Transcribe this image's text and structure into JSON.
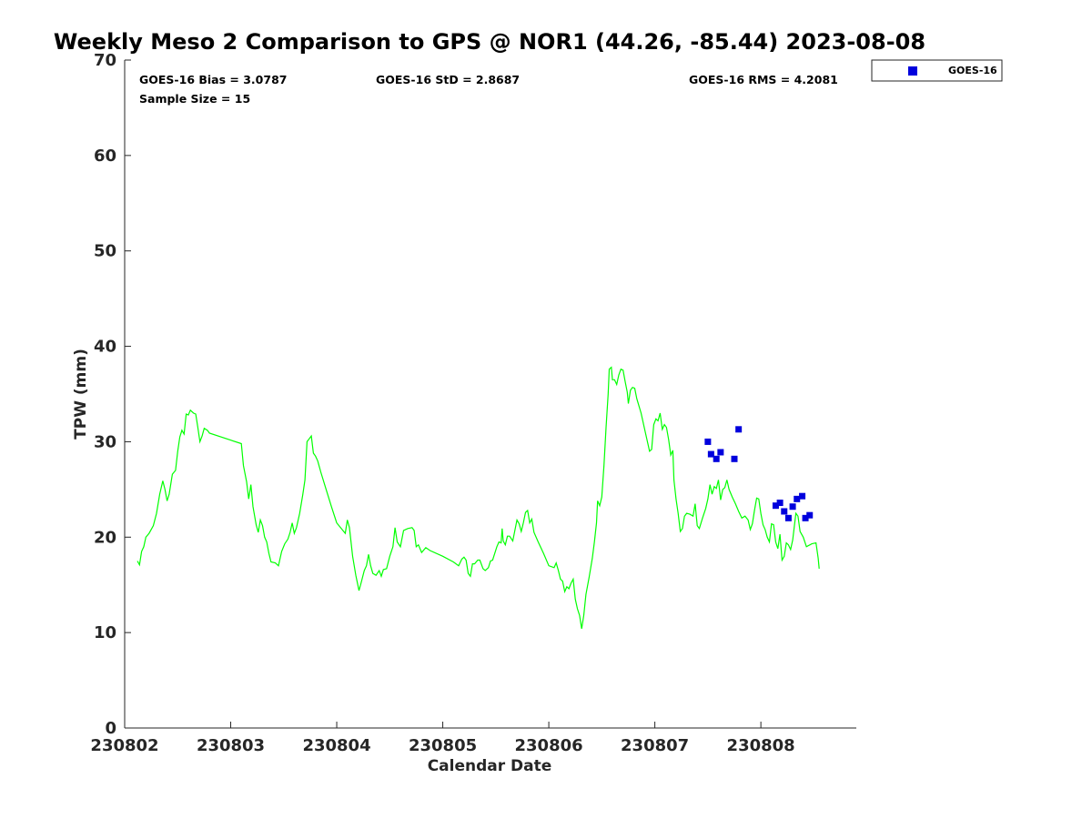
{
  "chart_data": {
    "type": "line",
    "title": "Weekly Meso 2 Comparison to GPS @ NOR1 (44.26, -85.44) 2023-08-08",
    "xlabel": "Calendar Date",
    "ylabel": "TPW (mm)",
    "xlim": [
      0,
      6.9
    ],
    "ylim": [
      0,
      70
    ],
    "x_ticks": [
      {
        "value": 0,
        "label": "230802"
      },
      {
        "value": 1,
        "label": "230803"
      },
      {
        "value": 2,
        "label": "230804"
      },
      {
        "value": 3,
        "label": "230805"
      },
      {
        "value": 4,
        "label": "230806"
      },
      {
        "value": 5,
        "label": "230807"
      },
      {
        "value": 6,
        "label": "230808"
      }
    ],
    "y_ticks": [
      0,
      10,
      20,
      30,
      40,
      50,
      60,
      70
    ],
    "stats": {
      "bias": "GOES-16 Bias = 3.0787",
      "std": "GOES-16 StD = 2.8687",
      "rms": "GOES-16 RMS = 4.2081",
      "sample_size": "Sample Size = 15"
    },
    "legend": {
      "placement": "top-right outside",
      "entries": [
        "GOES-16"
      ]
    },
    "grid": false,
    "series": [
      {
        "kind": "line",
        "color": "#00ff00",
        "points": [
          [
            0.12,
            17.5
          ],
          [
            0.14,
            17.1
          ],
          [
            0.16,
            18.5
          ],
          [
            0.18,
            19.0
          ],
          [
            0.2,
            20.0
          ],
          [
            0.23,
            20.4
          ],
          [
            0.27,
            21.2
          ],
          [
            0.3,
            22.5
          ],
          [
            0.33,
            24.5
          ],
          [
            0.36,
            25.9
          ],
          [
            0.38,
            25.0
          ],
          [
            0.4,
            23.8
          ],
          [
            0.42,
            24.5
          ],
          [
            0.45,
            26.6
          ],
          [
            0.48,
            27.0
          ],
          [
            0.5,
            29.0
          ],
          [
            0.52,
            30.5
          ],
          [
            0.54,
            31.2
          ],
          [
            0.56,
            30.8
          ],
          [
            0.58,
            32.9
          ],
          [
            0.6,
            32.8
          ],
          [
            0.62,
            33.3
          ],
          [
            0.65,
            33.0
          ],
          [
            0.67,
            32.9
          ],
          [
            0.69,
            31.5
          ],
          [
            0.71,
            30.0
          ],
          [
            0.73,
            30.6
          ],
          [
            0.75,
            31.4
          ],
          [
            0.78,
            31.2
          ],
          [
            0.8,
            30.9
          ],
          [
            1.1,
            29.8
          ],
          [
            1.12,
            27.5
          ],
          [
            1.15,
            25.8
          ],
          [
            1.17,
            24.0
          ],
          [
            1.19,
            25.5
          ],
          [
            1.21,
            23.2
          ],
          [
            1.24,
            21.3
          ],
          [
            1.26,
            20.5
          ],
          [
            1.28,
            21.8
          ],
          [
            1.3,
            21.2
          ],
          [
            1.32,
            20.0
          ],
          [
            1.34,
            19.5
          ],
          [
            1.36,
            18.3
          ],
          [
            1.38,
            17.4
          ],
          [
            1.42,
            17.3
          ],
          [
            1.45,
            17.0
          ],
          [
            1.48,
            18.5
          ],
          [
            1.51,
            19.3
          ],
          [
            1.54,
            19.8
          ],
          [
            1.56,
            20.5
          ],
          [
            1.58,
            21.5
          ],
          [
            1.6,
            20.4
          ],
          [
            1.62,
            21.0
          ],
          [
            1.65,
            22.5
          ],
          [
            1.68,
            24.5
          ],
          [
            1.7,
            26.0
          ],
          [
            1.72,
            30.0
          ],
          [
            1.74,
            30.3
          ],
          [
            1.76,
            30.6
          ],
          [
            1.78,
            28.8
          ],
          [
            1.8,
            28.5
          ],
          [
            1.82,
            28.0
          ],
          [
            1.85,
            26.8
          ],
          [
            1.9,
            25.0
          ],
          [
            1.95,
            23.2
          ],
          [
            2.0,
            21.5
          ],
          [
            2.08,
            20.4
          ],
          [
            2.1,
            21.8
          ],
          [
            2.12,
            21.0
          ],
          [
            2.15,
            18.0
          ],
          [
            2.18,
            16.0
          ],
          [
            2.21,
            14.4
          ],
          [
            2.23,
            15.2
          ],
          [
            2.26,
            16.5
          ],
          [
            2.28,
            17.0
          ],
          [
            2.3,
            18.2
          ],
          [
            2.32,
            17.0
          ],
          [
            2.34,
            16.2
          ],
          [
            2.37,
            16.0
          ],
          [
            2.4,
            16.5
          ],
          [
            2.42,
            15.9
          ],
          [
            2.44,
            16.6
          ],
          [
            2.47,
            16.7
          ],
          [
            2.5,
            18.0
          ],
          [
            2.53,
            19.0
          ],
          [
            2.55,
            21.0
          ],
          [
            2.57,
            19.5
          ],
          [
            2.6,
            19.0
          ],
          [
            2.63,
            20.7
          ],
          [
            2.67,
            20.9
          ],
          [
            2.71,
            21.0
          ],
          [
            2.73,
            20.7
          ],
          [
            2.75,
            19.0
          ],
          [
            2.77,
            19.2
          ],
          [
            2.8,
            18.4
          ],
          [
            2.84,
            18.9
          ],
          [
            2.88,
            18.6
          ],
          [
            3.0,
            18.0
          ],
          [
            3.1,
            17.4
          ],
          [
            3.15,
            17.0
          ],
          [
            3.18,
            17.7
          ],
          [
            3.2,
            17.9
          ],
          [
            3.22,
            17.6
          ],
          [
            3.24,
            16.2
          ],
          [
            3.26,
            15.9
          ],
          [
            3.28,
            17.2
          ],
          [
            3.3,
            17.2
          ],
          [
            3.33,
            17.6
          ],
          [
            3.35,
            17.6
          ],
          [
            3.38,
            16.7
          ],
          [
            3.4,
            16.5
          ],
          [
            3.43,
            16.8
          ],
          [
            3.45,
            17.5
          ],
          [
            3.47,
            17.6
          ],
          [
            3.49,
            18.3
          ],
          [
            3.51,
            19.0
          ],
          [
            3.53,
            19.5
          ],
          [
            3.55,
            19.4
          ],
          [
            3.56,
            20.9
          ],
          [
            3.57,
            19.6
          ],
          [
            3.59,
            19.2
          ],
          [
            3.61,
            20.1
          ],
          [
            3.63,
            20.1
          ],
          [
            3.66,
            19.6
          ],
          [
            3.68,
            20.7
          ],
          [
            3.7,
            21.8
          ],
          [
            3.72,
            21.4
          ],
          [
            3.74,
            20.6
          ],
          [
            3.76,
            21.5
          ],
          [
            3.78,
            22.6
          ],
          [
            3.8,
            22.8
          ],
          [
            3.82,
            21.5
          ],
          [
            3.84,
            21.9
          ],
          [
            3.86,
            20.5
          ],
          [
            3.9,
            19.5
          ],
          [
            3.95,
            18.3
          ],
          [
            4.0,
            17.0
          ],
          [
            4.05,
            16.8
          ],
          [
            4.07,
            17.3
          ],
          [
            4.09,
            16.5
          ],
          [
            4.11,
            15.6
          ],
          [
            4.13,
            15.4
          ],
          [
            4.15,
            14.3
          ],
          [
            4.17,
            14.8
          ],
          [
            4.19,
            14.6
          ],
          [
            4.21,
            15.2
          ],
          [
            4.23,
            15.6
          ],
          [
            4.25,
            13.5
          ],
          [
            4.27,
            12.5
          ],
          [
            4.29,
            11.8
          ],
          [
            4.31,
            10.4
          ],
          [
            4.33,
            11.8
          ],
          [
            4.35,
            14.0
          ],
          [
            4.38,
            15.8
          ],
          [
            4.41,
            17.8
          ],
          [
            4.43,
            19.5
          ],
          [
            4.45,
            21.5
          ],
          [
            4.46,
            23.8
          ],
          [
            4.48,
            23.3
          ],
          [
            4.5,
            24.2
          ],
          [
            4.52,
            27.5
          ],
          [
            4.54,
            31.5
          ],
          [
            4.56,
            35.0
          ],
          [
            4.57,
            37.6
          ],
          [
            4.59,
            37.8
          ],
          [
            4.6,
            36.5
          ],
          [
            4.62,
            36.5
          ],
          [
            4.64,
            36.0
          ],
          [
            4.66,
            37.0
          ],
          [
            4.68,
            37.6
          ],
          [
            4.7,
            37.5
          ],
          [
            4.72,
            36.3
          ],
          [
            4.74,
            35.2
          ],
          [
            4.75,
            34.0
          ],
          [
            4.77,
            35.4
          ],
          [
            4.79,
            35.7
          ],
          [
            4.81,
            35.6
          ],
          [
            4.83,
            34.5
          ],
          [
            4.87,
            33.0
          ],
          [
            4.91,
            31.0
          ],
          [
            4.95,
            29.0
          ],
          [
            4.97,
            29.2
          ],
          [
            4.99,
            31.8
          ],
          [
            5.01,
            32.4
          ],
          [
            5.03,
            32.2
          ],
          [
            5.05,
            33.0
          ],
          [
            5.07,
            31.3
          ],
          [
            5.09,
            31.8
          ],
          [
            5.11,
            31.5
          ],
          [
            5.13,
            30.2
          ],
          [
            5.15,
            28.6
          ],
          [
            5.17,
            29.1
          ],
          [
            5.18,
            26.0
          ],
          [
            5.2,
            24.0
          ],
          [
            5.22,
            22.5
          ],
          [
            5.24,
            20.6
          ],
          [
            5.26,
            20.9
          ],
          [
            5.28,
            22.2
          ],
          [
            5.3,
            22.5
          ],
          [
            5.33,
            22.4
          ],
          [
            5.36,
            22.2
          ],
          [
            5.38,
            23.5
          ],
          [
            5.4,
            21.2
          ],
          [
            5.42,
            20.9
          ],
          [
            5.45,
            22.0
          ],
          [
            5.48,
            23.0
          ],
          [
            5.5,
            24.0
          ],
          [
            5.52,
            25.5
          ],
          [
            5.54,
            24.5
          ],
          [
            5.56,
            25.3
          ],
          [
            5.58,
            25.1
          ],
          [
            5.6,
            26.0
          ],
          [
            5.62,
            23.9
          ],
          [
            5.64,
            25.0
          ],
          [
            5.66,
            25.2
          ],
          [
            5.68,
            26.0
          ],
          [
            5.7,
            25.0
          ],
          [
            5.73,
            24.2
          ],
          [
            5.76,
            23.5
          ],
          [
            5.79,
            22.7
          ],
          [
            5.82,
            22.0
          ],
          [
            5.85,
            22.2
          ],
          [
            5.88,
            21.8
          ],
          [
            5.9,
            20.8
          ],
          [
            5.92,
            21.4
          ],
          [
            5.94,
            22.8
          ],
          [
            5.96,
            24.1
          ],
          [
            5.98,
            24.0
          ],
          [
            6.0,
            22.5
          ],
          [
            6.02,
            21.3
          ],
          [
            6.04,
            20.8
          ],
          [
            6.06,
            20.0
          ],
          [
            6.08,
            19.5
          ],
          [
            6.1,
            21.4
          ],
          [
            6.12,
            21.3
          ],
          [
            6.14,
            19.5
          ],
          [
            6.16,
            18.8
          ],
          [
            6.18,
            20.3
          ],
          [
            6.2,
            17.6
          ],
          [
            6.22,
            18.0
          ],
          [
            6.24,
            19.4
          ],
          [
            6.26,
            19.2
          ],
          [
            6.28,
            18.7
          ],
          [
            6.3,
            19.7
          ],
          [
            6.33,
            22.5
          ],
          [
            6.35,
            22.2
          ],
          [
            6.37,
            20.6
          ],
          [
            6.4,
            20.0
          ],
          [
            6.43,
            19.0
          ],
          [
            6.48,
            19.3
          ],
          [
            6.52,
            19.4
          ],
          [
            6.54,
            17.8
          ],
          [
            6.55,
            16.7
          ]
        ]
      },
      {
        "name": "GOES-16",
        "kind": "scatter",
        "color": "#0000dd",
        "points": [
          [
            5.5,
            30.0
          ],
          [
            5.53,
            28.7
          ],
          [
            5.58,
            28.2
          ],
          [
            5.62,
            28.9
          ],
          [
            5.75,
            28.2
          ],
          [
            5.79,
            31.3
          ],
          [
            6.14,
            23.3
          ],
          [
            6.18,
            23.6
          ],
          [
            6.22,
            22.7
          ],
          [
            6.26,
            22.0
          ],
          [
            6.3,
            23.2
          ],
          [
            6.34,
            24.0
          ],
          [
            6.39,
            24.3
          ],
          [
            6.42,
            22.0
          ],
          [
            6.46,
            22.3
          ]
        ]
      }
    ]
  }
}
